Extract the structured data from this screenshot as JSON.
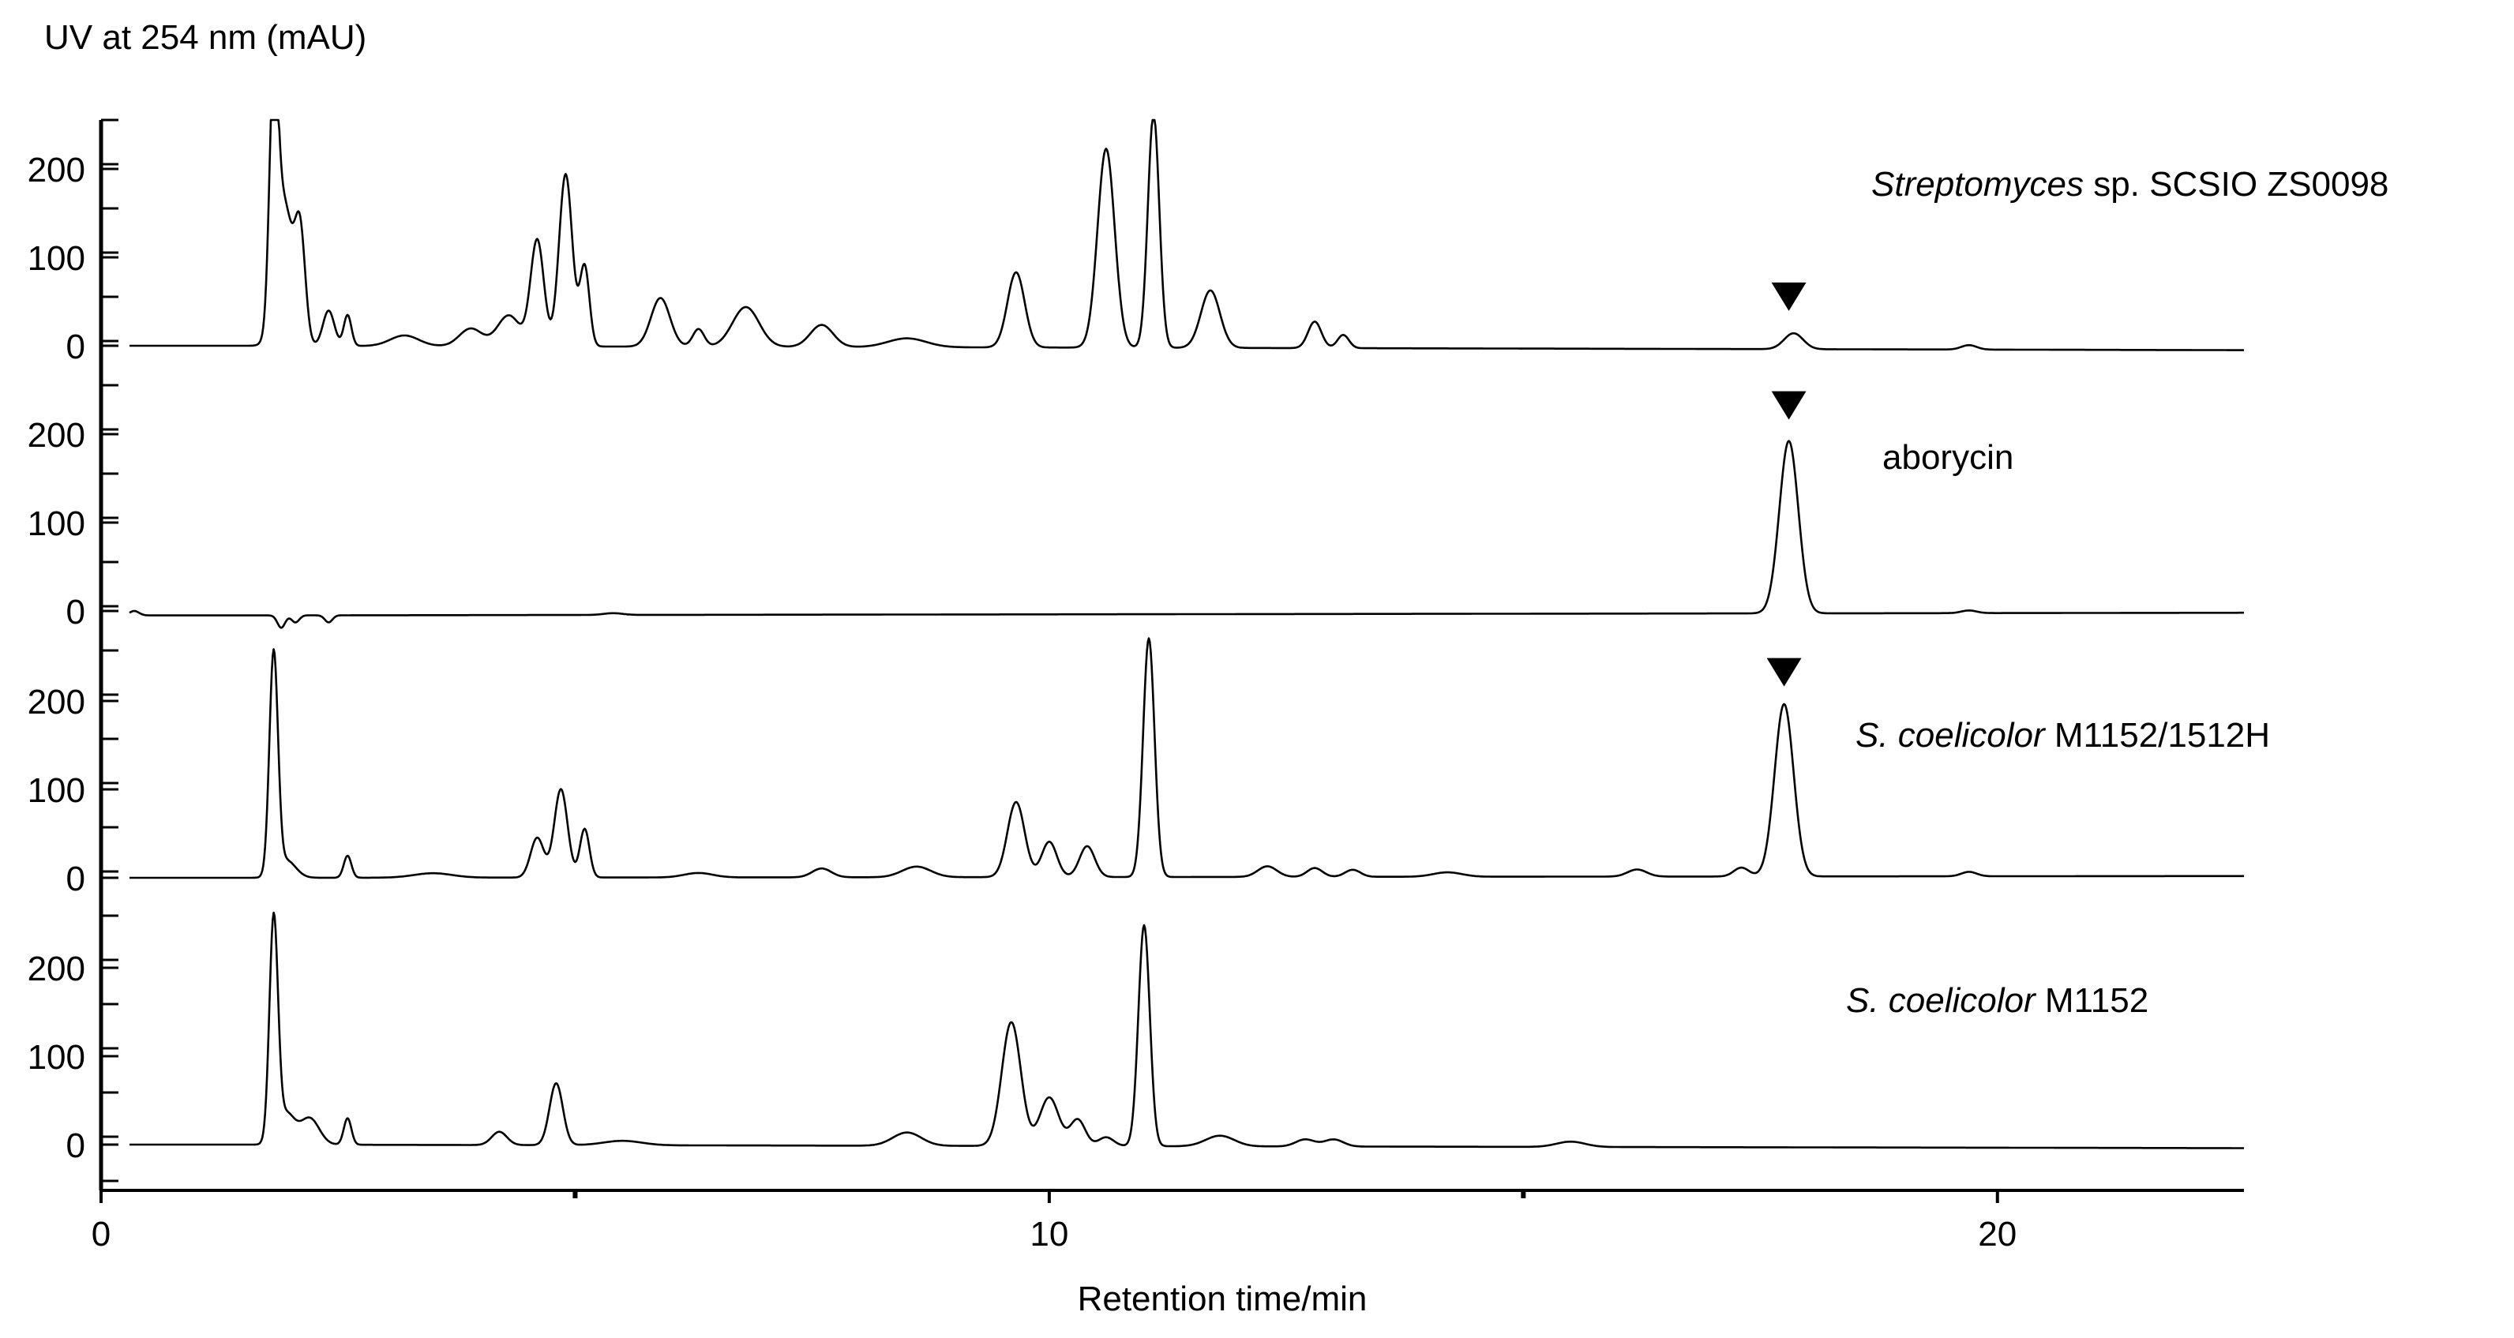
{
  "chart_data": {
    "type": "line",
    "ylabel": "UV at 254 nm (mAU)",
    "xlabel": "Retention time/min",
    "xlim": [
      0,
      22.6
    ],
    "x_ticks": [
      0,
      10,
      20
    ],
    "y_ticks": [
      0,
      100,
      200
    ],
    "ylim_per_trace": [
      0,
      250
    ],
    "marker_symbol": "▼",
    "series": [
      {
        "id": "s1",
        "label_italic": "Streptomyces",
        "label_rest": " sp. SCSIO ZS0098",
        "baseline": 0,
        "drift_end": -5,
        "markers": [
          17.8
        ],
        "peaks": [
          [
            1.82,
            260,
            0.045
          ],
          [
            1.93,
            160,
            0.09
          ],
          [
            2.1,
            120,
            0.055
          ],
          [
            2.4,
            40,
            0.06
          ],
          [
            2.6,
            35,
            0.04
          ],
          [
            3.2,
            12,
            0.15
          ],
          [
            3.9,
            20,
            0.12
          ],
          [
            4.3,
            35,
            0.12
          ],
          [
            4.6,
            120,
            0.07
          ],
          [
            4.9,
            195,
            0.07
          ],
          [
            5.1,
            90,
            0.05
          ],
          [
            5.9,
            55,
            0.1
          ],
          [
            6.3,
            20,
            0.06
          ],
          [
            6.8,
            45,
            0.14
          ],
          [
            7.6,
            25,
            0.12
          ],
          [
            8.5,
            10,
            0.2
          ],
          [
            9.65,
            85,
            0.09
          ],
          [
            10.6,
            225,
            0.09
          ],
          [
            11.1,
            265,
            0.06
          ],
          [
            11.7,
            65,
            0.1
          ],
          [
            12.8,
            30,
            0.07
          ],
          [
            13.1,
            15,
            0.06
          ],
          [
            17.85,
            18,
            0.1
          ],
          [
            19.7,
            5,
            0.08
          ]
        ]
      },
      {
        "id": "s2",
        "label_italic": "",
        "label_rest": "aborycin",
        "baseline": -5,
        "drift_end": 3,
        "markers": [
          17.8
        ],
        "peaks": [
          [
            0.35,
            5,
            0.05
          ],
          [
            1.9,
            -14,
            0.04
          ],
          [
            2.05,
            -8,
            0.04
          ],
          [
            2.4,
            -8,
            0.04
          ],
          [
            5.4,
            2,
            0.1
          ],
          [
            17.8,
            195,
            0.1
          ],
          [
            19.7,
            3,
            0.08
          ]
        ]
      },
      {
        "id": "s3",
        "label_italic": "S. coelicolor",
        "label_rest": " M1152/1512H",
        "baseline": 0,
        "drift_end": 2,
        "markers": [
          17.75
        ],
        "peaks": [
          [
            1.82,
            250,
            0.045
          ],
          [
            1.95,
            20,
            0.1
          ],
          [
            2.6,
            25,
            0.04
          ],
          [
            3.5,
            5,
            0.2
          ],
          [
            4.6,
            45,
            0.07
          ],
          [
            4.85,
            100,
            0.07
          ],
          [
            5.1,
            55,
            0.05
          ],
          [
            6.3,
            5,
            0.15
          ],
          [
            7.6,
            10,
            0.1
          ],
          [
            8.6,
            12,
            0.15
          ],
          [
            9.65,
            85,
            0.09
          ],
          [
            10.0,
            40,
            0.08
          ],
          [
            10.4,
            35,
            0.08
          ],
          [
            11.05,
            270,
            0.06
          ],
          [
            12.3,
            12,
            0.1
          ],
          [
            12.8,
            10,
            0.08
          ],
          [
            13.2,
            8,
            0.08
          ],
          [
            14.2,
            5,
            0.15
          ],
          [
            16.2,
            8,
            0.1
          ],
          [
            17.3,
            10,
            0.08
          ],
          [
            17.75,
            195,
            0.1
          ],
          [
            19.7,
            5,
            0.08
          ]
        ]
      },
      {
        "id": "s4",
        "label_italic": "S. coelicolor",
        "label_rest": " M1152",
        "baseline": 0,
        "drift_end": -4,
        "markers": [],
        "peaks": [
          [
            1.82,
            250,
            0.045
          ],
          [
            1.95,
            35,
            0.09
          ],
          [
            2.2,
            30,
            0.1
          ],
          [
            2.6,
            30,
            0.04
          ],
          [
            4.2,
            15,
            0.08
          ],
          [
            4.8,
            70,
            0.07
          ],
          [
            5.5,
            5,
            0.2
          ],
          [
            8.5,
            15,
            0.15
          ],
          [
            9.6,
            140,
            0.1
          ],
          [
            10.0,
            55,
            0.1
          ],
          [
            10.3,
            30,
            0.08
          ],
          [
            10.6,
            10,
            0.08
          ],
          [
            11.0,
            250,
            0.06
          ],
          [
            11.8,
            12,
            0.15
          ],
          [
            12.7,
            8,
            0.1
          ],
          [
            13.0,
            8,
            0.1
          ],
          [
            15.5,
            6,
            0.15
          ]
        ]
      }
    ]
  }
}
